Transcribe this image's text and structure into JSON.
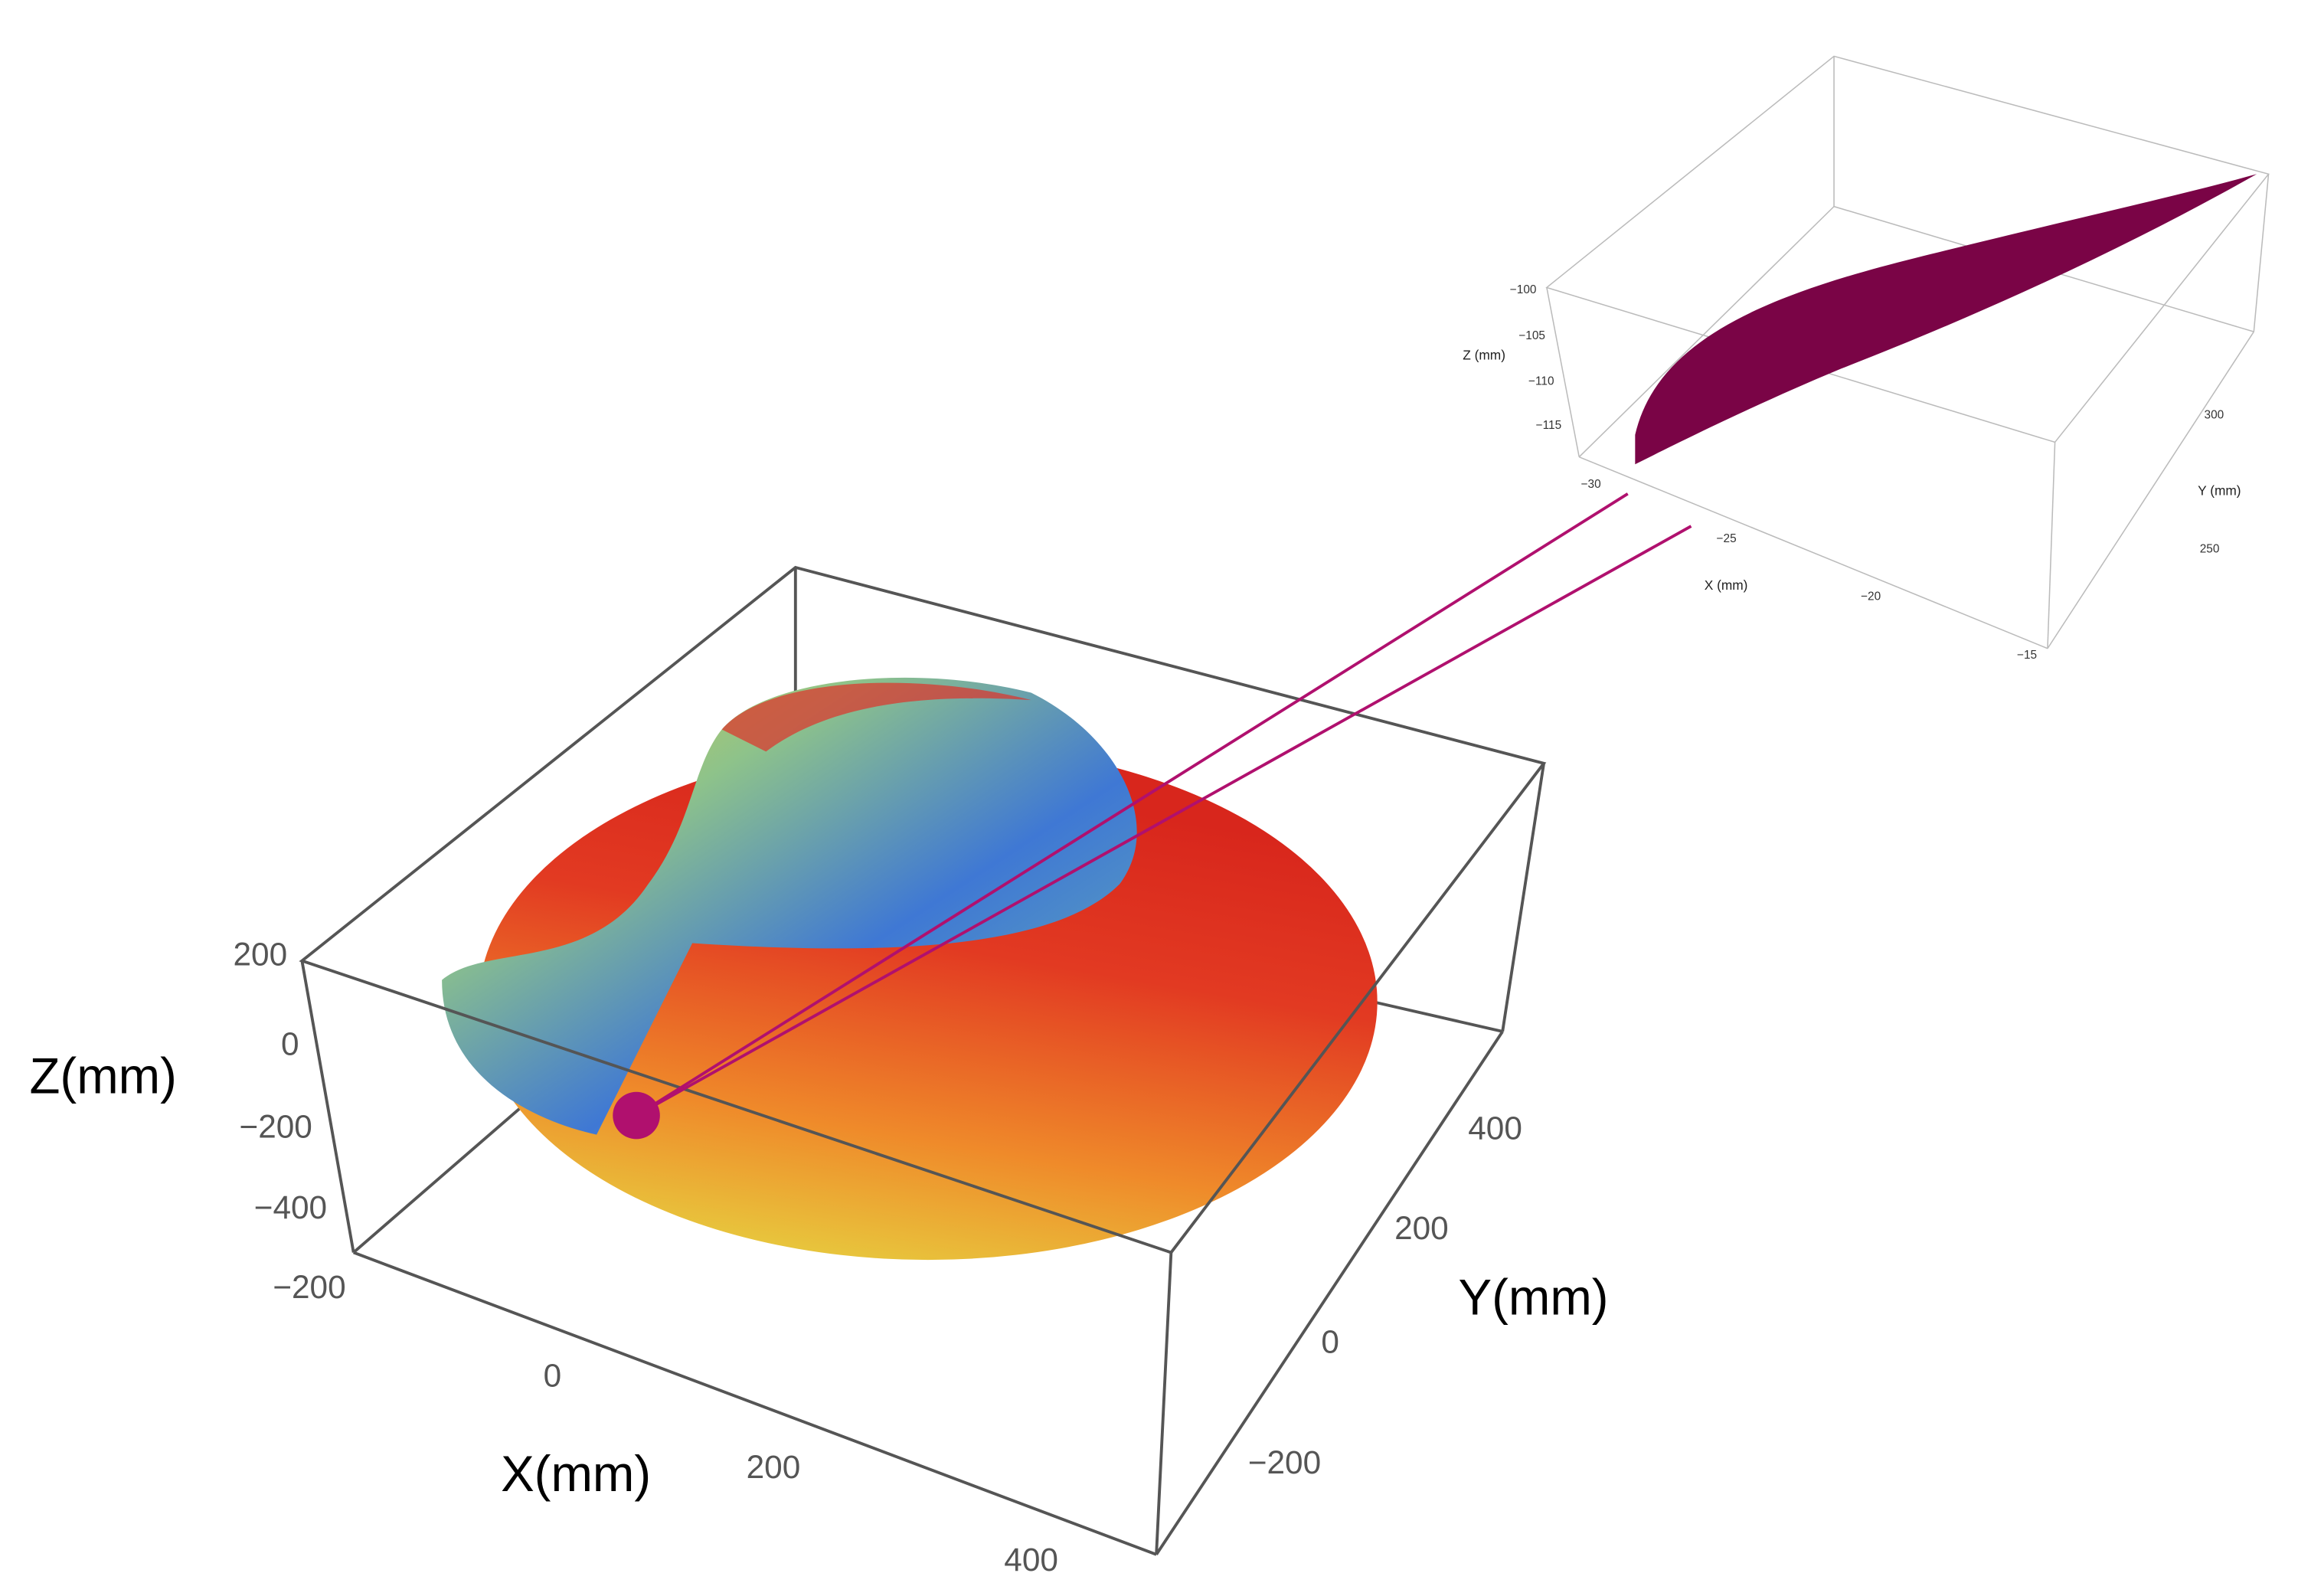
{
  "main_plot": {
    "z_axis": {
      "label": "Z(mm)",
      "ticks": [
        "200",
        "0",
        "−200",
        "−400"
      ]
    },
    "x_axis": {
      "label": "X(mm)",
      "ticks": [
        "−200",
        "0",
        "200",
        "400"
      ]
    },
    "y_axis": {
      "label": "Y(mm)",
      "ticks": [
        "400",
        "200",
        "0",
        "−200"
      ]
    }
  },
  "inset_plot": {
    "z_axis": {
      "label": "Z (mm)",
      "ticks": [
        "−100",
        "−105",
        "−110",
        "−115"
      ]
    },
    "x_axis": {
      "label": "X (mm)",
      "ticks": [
        "−30",
        "−25",
        "−20",
        "−15"
      ]
    },
    "y_axis": {
      "label": "Y (mm)",
      "ticks": [
        "300",
        "250"
      ]
    }
  }
}
